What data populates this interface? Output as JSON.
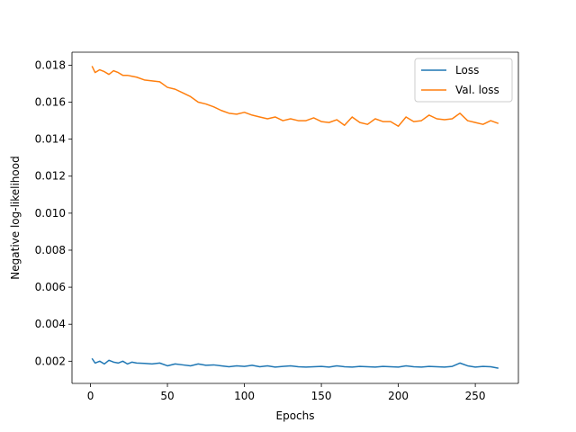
{
  "chart_data": {
    "type": "line",
    "title": "",
    "xlabel": "Epochs",
    "ylabel": "Negative log-likelihood",
    "xlim": [
      -12,
      278
    ],
    "ylim": [
      0.0008,
      0.0187
    ],
    "x_ticks": [
      0,
      50,
      100,
      150,
      200,
      250
    ],
    "y_ticks": [
      0.002,
      0.004,
      0.006,
      0.008,
      0.01,
      0.012,
      0.014,
      0.016,
      0.018
    ],
    "y_tick_labels": [
      "0.002",
      "0.004",
      "0.006",
      "0.008",
      "0.010",
      "0.012",
      "0.014",
      "0.016",
      "0.018"
    ],
    "grid": false,
    "legend_position": "top-right",
    "series": [
      {
        "name": "Loss",
        "color": "#1f77b4",
        "x": [
          1,
          3,
          6,
          9,
          12,
          15,
          18,
          21,
          24,
          27,
          30,
          35,
          40,
          45,
          50,
          55,
          60,
          65,
          70,
          75,
          80,
          85,
          90,
          95,
          100,
          105,
          110,
          115,
          120,
          125,
          130,
          135,
          140,
          145,
          150,
          155,
          160,
          165,
          170,
          175,
          180,
          185,
          190,
          195,
          200,
          205,
          210,
          215,
          220,
          225,
          230,
          235,
          240,
          245,
          250,
          255,
          260,
          265
        ],
        "y": [
          0.00215,
          0.0019,
          0.002,
          0.00185,
          0.00205,
          0.00195,
          0.0019,
          0.002,
          0.00185,
          0.00195,
          0.0019,
          0.00188,
          0.00185,
          0.0019,
          0.00175,
          0.00185,
          0.0018,
          0.00175,
          0.00185,
          0.00178,
          0.0018,
          0.00175,
          0.0017,
          0.00175,
          0.00172,
          0.00178,
          0.0017,
          0.00175,
          0.00168,
          0.00172,
          0.00175,
          0.0017,
          0.00168,
          0.0017,
          0.00172,
          0.00168,
          0.00175,
          0.0017,
          0.00168,
          0.00172,
          0.0017,
          0.00168,
          0.00172,
          0.0017,
          0.00168,
          0.00175,
          0.0017,
          0.00168,
          0.00172,
          0.0017,
          0.00168,
          0.00172,
          0.0019,
          0.00175,
          0.00168,
          0.00172,
          0.0017,
          0.00162
        ]
      },
      {
        "name": "Val. loss",
        "color": "#ff7f0e",
        "x": [
          1,
          3,
          6,
          9,
          12,
          15,
          18,
          21,
          24,
          27,
          30,
          35,
          40,
          45,
          50,
          55,
          60,
          65,
          70,
          75,
          80,
          85,
          90,
          95,
          100,
          105,
          110,
          115,
          120,
          125,
          130,
          135,
          140,
          145,
          150,
          155,
          160,
          165,
          170,
          175,
          180,
          185,
          190,
          195,
          200,
          205,
          210,
          215,
          220,
          225,
          230,
          235,
          240,
          245,
          250,
          255,
          260,
          265
        ],
        "y": [
          0.01795,
          0.0176,
          0.01775,
          0.01765,
          0.0175,
          0.0177,
          0.0176,
          0.01745,
          0.01745,
          0.0174,
          0.01735,
          0.0172,
          0.01715,
          0.0171,
          0.0168,
          0.0167,
          0.0165,
          0.0163,
          0.016,
          0.0159,
          0.01575,
          0.01555,
          0.0154,
          0.01535,
          0.01545,
          0.0153,
          0.0152,
          0.0151,
          0.0152,
          0.015,
          0.0151,
          0.015,
          0.015,
          0.01515,
          0.01495,
          0.0149,
          0.01505,
          0.01475,
          0.0152,
          0.0149,
          0.0148,
          0.0151,
          0.01495,
          0.01495,
          0.0147,
          0.0152,
          0.01495,
          0.015,
          0.0153,
          0.0151,
          0.01505,
          0.0151,
          0.0154,
          0.015,
          0.0149,
          0.0148,
          0.015,
          0.01485
        ]
      }
    ]
  }
}
